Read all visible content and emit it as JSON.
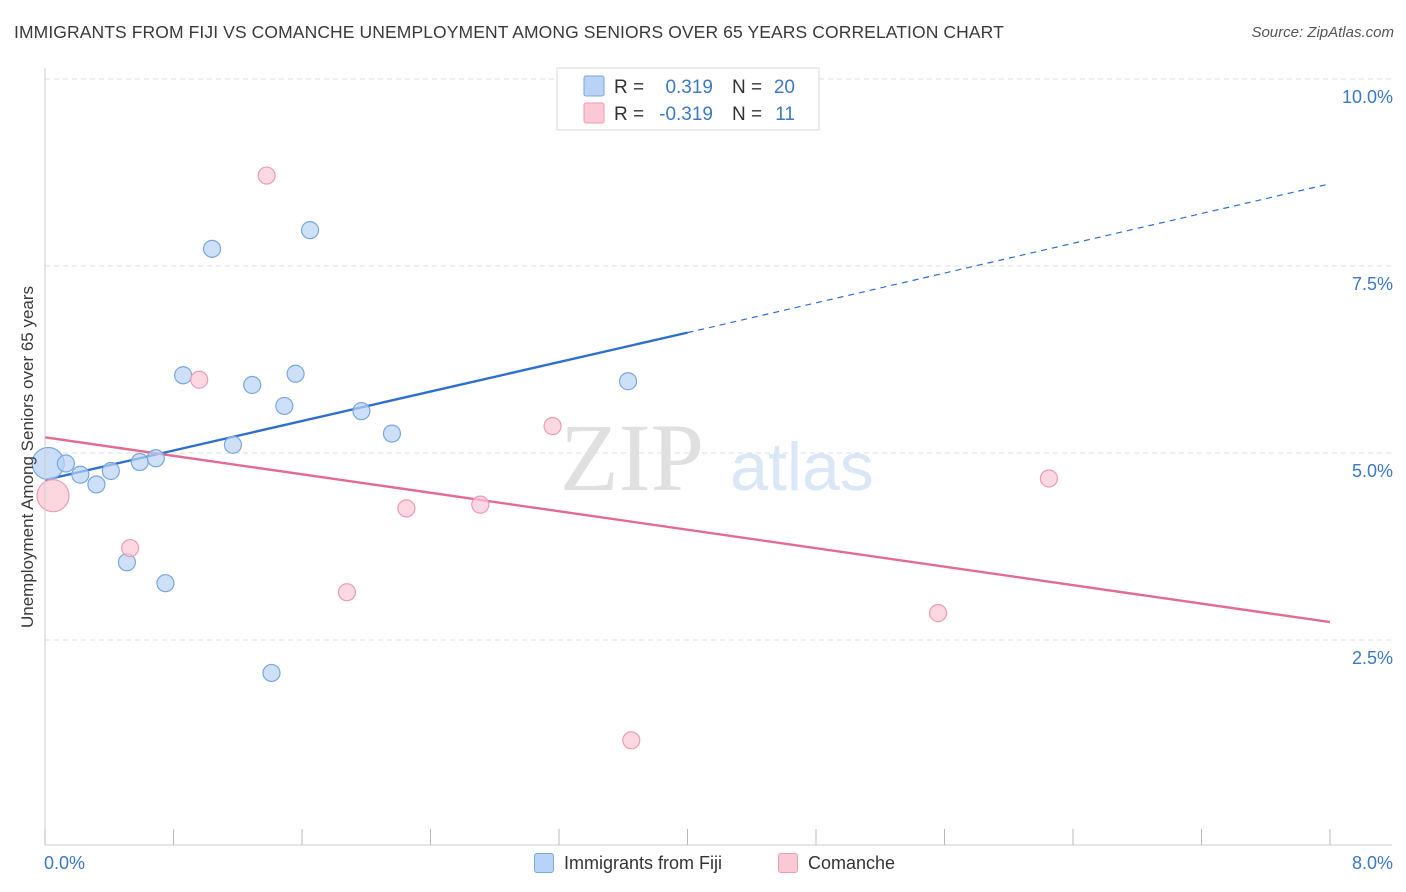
{
  "title": "IMMIGRANTS FROM FIJI VS COMANCHE UNEMPLOYMENT AMONG SENIORS OVER 65 YEARS CORRELATION CHART",
  "source": "Source: ZipAtlas.com",
  "watermark": {
    "zip": "ZIP",
    "atlas": "atlas"
  },
  "colors": {
    "fiji_fill": "#b8d3f5",
    "fiji_stroke": "#7aa7e0",
    "fiji_line": "#2c6fcf",
    "comanche_fill": "#fbc9d6",
    "comanche_stroke": "#ee9ab2",
    "comanche_line": "#e36b93",
    "tick_label": "#3b78c7",
    "grid": "#dddddd",
    "axis": "#cccccc"
  },
  "legend": {
    "rows": [
      {
        "r_label": "R =",
        "r_value": "0.319",
        "n_label": "N =",
        "n_value": "20",
        "series": "fiji"
      },
      {
        "r_label": "R =",
        "r_value": "-0.319",
        "n_label": "N =",
        "n_value": "11",
        "series": "comanche"
      }
    ]
  },
  "bottom_legend": {
    "fiji": "Immigrants from Fiji",
    "comanche": "Comanche"
  },
  "chart_data": {
    "type": "scatter",
    "title": "IMMIGRANTS FROM FIJI VS COMANCHE UNEMPLOYMENT AMONG SENIORS OVER 65 YEARS CORRELATION CHART",
    "xlabel": "",
    "ylabel": "Unemployment Among Seniors over 65 years",
    "xlim": [
      0,
      8
    ],
    "ylim": [
      0,
      10
    ],
    "x_tick_labels": [
      "0.0%",
      "8.0%"
    ],
    "y_ticks": [
      2.5,
      5.0,
      7.5,
      10.0
    ],
    "y_tick_labels": [
      "2.5%",
      "5.0%",
      "7.5%",
      "10.0%"
    ],
    "grid": true,
    "legend_position": "top-center",
    "series": [
      {
        "name": "Immigrants from Fiji",
        "key": "fiji",
        "points": [
          {
            "x": 0.02,
            "y": 5.1,
            "big": true
          },
          {
            "x": 0.13,
            "y": 5.1
          },
          {
            "x": 0.22,
            "y": 4.95
          },
          {
            "x": 0.32,
            "y": 4.82
          },
          {
            "x": 0.41,
            "y": 5.0
          },
          {
            "x": 0.51,
            "y": 3.78
          },
          {
            "x": 0.59,
            "y": 5.12
          },
          {
            "x": 0.69,
            "y": 5.17
          },
          {
            "x": 0.75,
            "y": 3.5
          },
          {
            "x": 0.86,
            "y": 6.28
          },
          {
            "x": 1.04,
            "y": 7.97
          },
          {
            "x": 1.17,
            "y": 5.35
          },
          {
            "x": 1.29,
            "y": 6.15
          },
          {
            "x": 1.41,
            "y": 2.3
          },
          {
            "x": 1.49,
            "y": 5.87
          },
          {
            "x": 1.56,
            "y": 6.3
          },
          {
            "x": 1.65,
            "y": 8.22
          },
          {
            "x": 1.97,
            "y": 5.8
          },
          {
            "x": 2.16,
            "y": 5.5
          },
          {
            "x": 3.63,
            "y": 6.2
          }
        ],
        "trend": {
          "x0": 0.0,
          "y0": 4.88,
          "x1": 4.0,
          "y1": 6.85,
          "dash_to_x": 8.0,
          "dash_to_y": 8.84
        }
      },
      {
        "name": "Comanche",
        "key": "comanche",
        "points": [
          {
            "x": 0.05,
            "y": 4.67,
            "big": true
          },
          {
            "x": 0.53,
            "y": 3.97
          },
          {
            "x": 0.96,
            "y": 6.22
          },
          {
            "x": 1.38,
            "y": 8.95
          },
          {
            "x": 1.88,
            "y": 3.38
          },
          {
            "x": 2.25,
            "y": 4.5
          },
          {
            "x": 2.71,
            "y": 4.55
          },
          {
            "x": 3.16,
            "y": 5.6
          },
          {
            "x": 3.65,
            "y": 1.4
          },
          {
            "x": 5.56,
            "y": 3.1
          },
          {
            "x": 6.25,
            "y": 4.9
          }
        ],
        "trend": {
          "x0": 0.0,
          "y0": 5.45,
          "x1": 8.0,
          "y1": 2.98
        }
      }
    ]
  }
}
